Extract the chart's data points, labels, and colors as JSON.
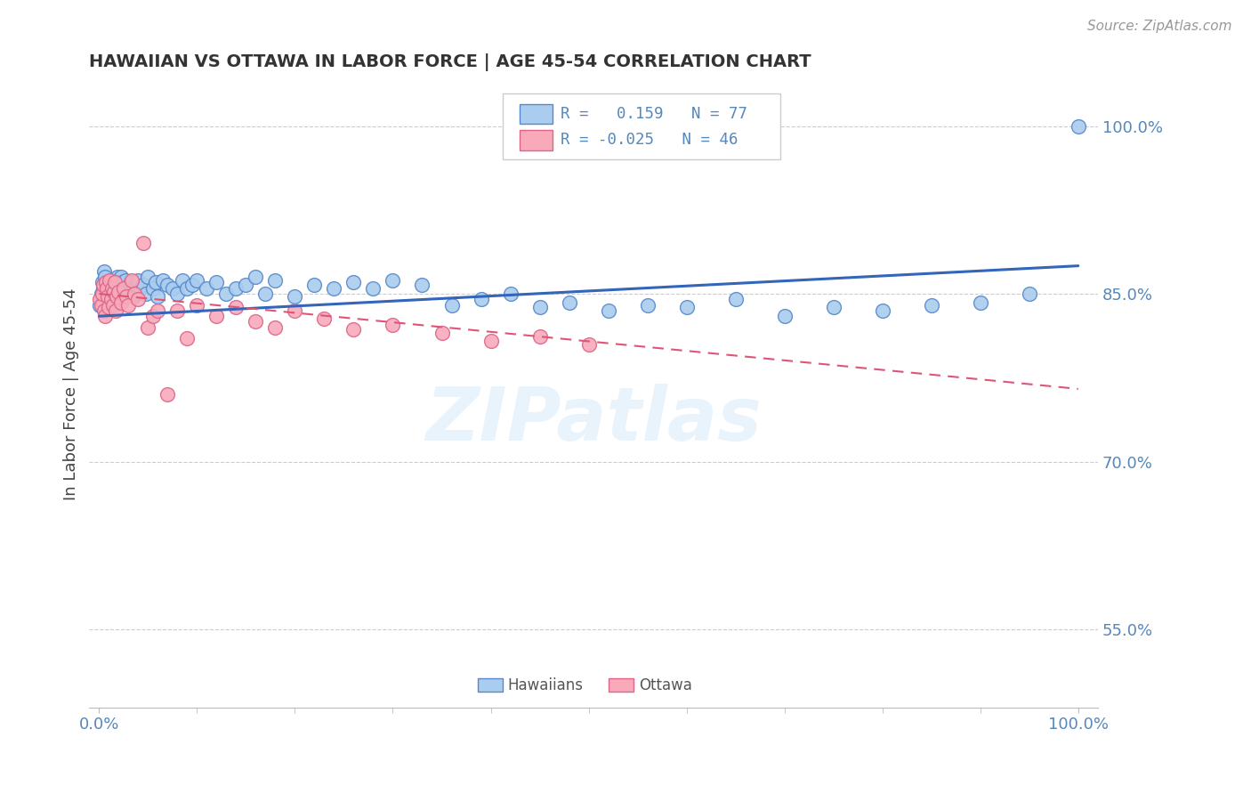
{
  "title": "HAWAIIAN VS OTTAWA IN LABOR FORCE | AGE 45-54 CORRELATION CHART",
  "source_text": "Source: ZipAtlas.com",
  "ylabel": "In Labor Force | Age 45-54",
  "hawaiian_color": "#aaccee",
  "hawaiian_edge": "#5588cc",
  "ottawa_color": "#f8aabb",
  "ottawa_edge": "#dd6688",
  "trend_hawaiian_color": "#3366bb",
  "trend_ottawa_color": "#dd5577",
  "axis_color": "#5588bb",
  "title_color": "#333333",
  "ylabel_color": "#444444",
  "grid_color": "#cccccc",
  "watermark_color": "#d8eaf8",
  "background_color": "#ffffff",
  "hawaiian_x": [
    0.001,
    0.002,
    0.003,
    0.004,
    0.005,
    0.005,
    0.006,
    0.007,
    0.008,
    0.009,
    0.01,
    0.011,
    0.012,
    0.013,
    0.014,
    0.015,
    0.016,
    0.017,
    0.018,
    0.019,
    0.02,
    0.021,
    0.022,
    0.023,
    0.025,
    0.027,
    0.03,
    0.032,
    0.035,
    0.038,
    0.04,
    0.042,
    0.045,
    0.048,
    0.05,
    0.055,
    0.058,
    0.06,
    0.065,
    0.07,
    0.075,
    0.08,
    0.085,
    0.09,
    0.095,
    0.1,
    0.11,
    0.12,
    0.13,
    0.14,
    0.15,
    0.16,
    0.17,
    0.18,
    0.2,
    0.22,
    0.24,
    0.26,
    0.28,
    0.3,
    0.33,
    0.36,
    0.39,
    0.42,
    0.45,
    0.48,
    0.52,
    0.56,
    0.6,
    0.65,
    0.7,
    0.75,
    0.8,
    0.85,
    0.9,
    0.95,
    1.0
  ],
  "hawaiian_y": [
    0.84,
    0.85,
    0.86,
    0.855,
    0.845,
    0.87,
    0.865,
    0.855,
    0.85,
    0.86,
    0.848,
    0.855,
    0.862,
    0.85,
    0.858,
    0.852,
    0.86,
    0.855,
    0.848,
    0.865,
    0.855,
    0.858,
    0.865,
    0.86,
    0.855,
    0.862,
    0.85,
    0.86,
    0.848,
    0.858,
    0.862,
    0.855,
    0.858,
    0.85,
    0.865,
    0.855,
    0.86,
    0.848,
    0.862,
    0.858,
    0.855,
    0.85,
    0.862,
    0.855,
    0.858,
    0.862,
    0.855,
    0.86,
    0.85,
    0.855,
    0.858,
    0.865,
    0.85,
    0.862,
    0.848,
    0.858,
    0.855,
    0.86,
    0.855,
    0.862,
    0.858,
    0.84,
    0.845,
    0.85,
    0.838,
    0.842,
    0.835,
    0.84,
    0.838,
    0.845,
    0.83,
    0.838,
    0.835,
    0.84,
    0.842,
    0.85,
    1.0
  ],
  "ottawa_x": [
    0.001,
    0.002,
    0.003,
    0.004,
    0.005,
    0.006,
    0.007,
    0.008,
    0.009,
    0.01,
    0.011,
    0.012,
    0.013,
    0.014,
    0.015,
    0.016,
    0.017,
    0.018,
    0.02,
    0.022,
    0.025,
    0.028,
    0.03,
    0.033,
    0.036,
    0.04,
    0.045,
    0.05,
    0.055,
    0.06,
    0.07,
    0.08,
    0.09,
    0.1,
    0.12,
    0.14,
    0.16,
    0.18,
    0.2,
    0.23,
    0.26,
    0.3,
    0.35,
    0.4,
    0.45,
    0.5
  ],
  "ottawa_y": [
    0.845,
    0.84,
    0.85,
    0.858,
    0.835,
    0.83,
    0.86,
    0.855,
    0.848,
    0.838,
    0.862,
    0.845,
    0.855,
    0.84,
    0.852,
    0.86,
    0.835,
    0.848,
    0.852,
    0.842,
    0.855,
    0.848,
    0.84,
    0.862,
    0.85,
    0.845,
    0.895,
    0.82,
    0.83,
    0.835,
    0.76,
    0.835,
    0.81,
    0.84,
    0.83,
    0.838,
    0.825,
    0.82,
    0.835,
    0.828,
    0.818,
    0.822,
    0.815,
    0.808,
    0.812,
    0.805
  ],
  "haw_trend_x": [
    0.0,
    1.0
  ],
  "haw_trend_y": [
    0.83,
    0.875
  ],
  "ott_trend_x": [
    0.0,
    1.0
  ],
  "ott_trend_y": [
    0.85,
    0.765
  ],
  "xlim": [
    -0.01,
    1.02
  ],
  "ylim": [
    0.48,
    1.04
  ],
  "ytick_vals": [
    0.55,
    0.7,
    0.85,
    1.0
  ],
  "ytick_labels": [
    "55.0%",
    "70.0%",
    "85.0%",
    "100.0%"
  ],
  "xtick_vals": [
    0.0,
    1.0
  ],
  "xtick_labels": [
    "0.0%",
    "100.0%"
  ]
}
